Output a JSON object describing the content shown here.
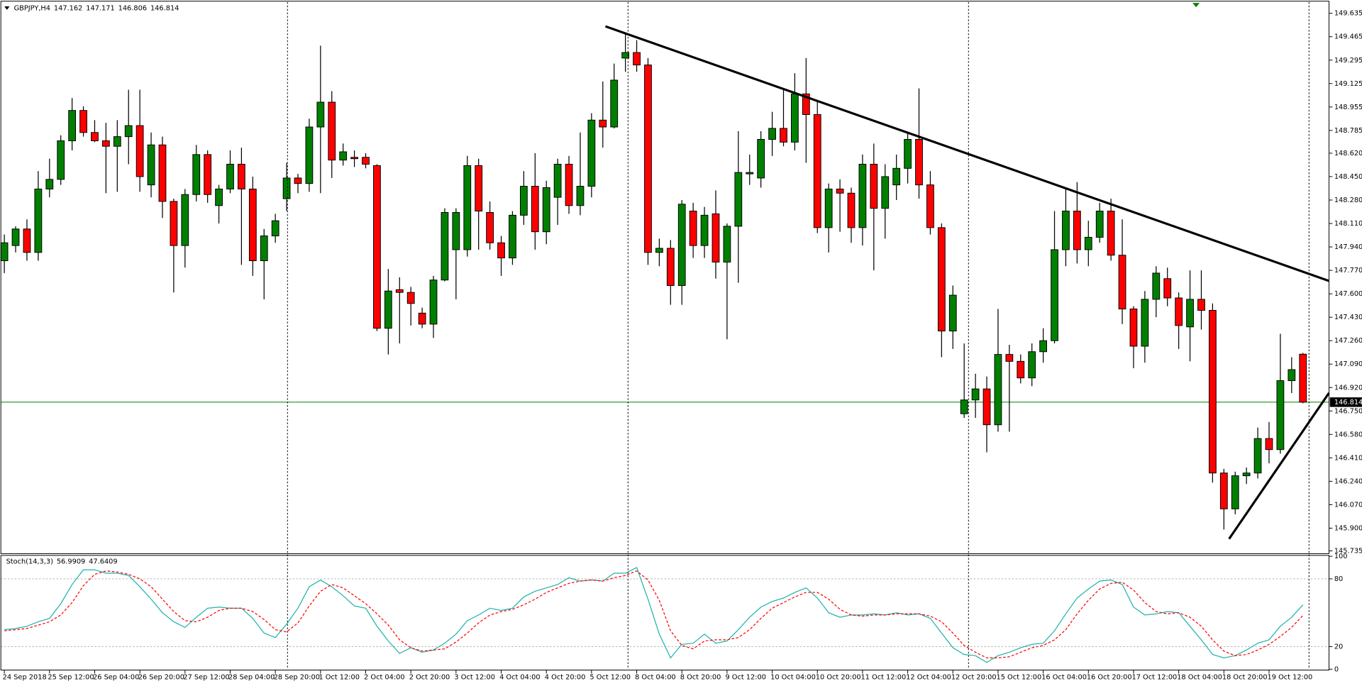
{
  "chart_data": {
    "type": "candlestick",
    "title": "GBPJPY,H4",
    "up_color": "#008000",
    "down_color": "#ff0000",
    "price_line_color": "#008000",
    "ylim": [
      145.715,
      149.71
    ],
    "yticks": [
      149.635,
      149.465,
      149.295,
      149.125,
      148.955,
      148.785,
      {
        "value": 148.62,
        "label": "148.620"
      },
      {
        "value": 148.45,
        "label": "148.450"
      },
      {
        "value": 148.28,
        "label": "148.280"
      },
      {
        "value": 148.11,
        "label": "148.110"
      },
      {
        "value": 147.94,
        "label": "147.940"
      },
      {
        "value": 147.77,
        "label": "147.770"
      },
      {
        "value": 147.6,
        "label": "147.600"
      },
      {
        "value": 147.43,
        "label": "147.430"
      },
      {
        "value": 147.26,
        "label": "147.260"
      },
      {
        "value": 147.09,
        "label": "147.090"
      },
      {
        "value": 146.92,
        "label": "146.920"
      },
      {
        "value": 146.75,
        "label": "146.750"
      },
      {
        "value": 146.58,
        "label": "146.580"
      },
      {
        "value": 146.41,
        "label": "146.410"
      },
      {
        "value": 146.24,
        "label": "146.240"
      },
      {
        "value": 146.07,
        "label": "146.070"
      },
      {
        "value": 145.9,
        "label": "145.900"
      },
      145.735
    ],
    "categories": [
      "24 Sep 2018",
      null,
      null,
      null,
      "25 Sep 12:00",
      null,
      null,
      null,
      "26 Sep 04:00",
      null,
      null,
      null,
      "26 Sep 20:00",
      null,
      null,
      null,
      "27 Sep 12:00",
      null,
      null,
      null,
      "28 Sep 04:00",
      null,
      null,
      null,
      "28 Sep 20:00",
      null,
      null,
      null,
      "1 Oct 12:00",
      null,
      null,
      null,
      "2 Oct 04:00",
      null,
      null,
      null,
      "2 Oct 20:00",
      null,
      null,
      null,
      "3 Oct 12:00",
      null,
      null,
      null,
      "4 Oct 04:00",
      null,
      null,
      null,
      "4 Oct 20:00",
      null,
      null,
      null,
      "5 Oct 12:00",
      null,
      null,
      null,
      "8 Oct 04:00",
      null,
      null,
      null,
      "8 Oct 20:00",
      null,
      null,
      null,
      "9 Oct 12:00",
      null,
      null,
      null,
      "10 Oct 04:00",
      null,
      null,
      null,
      "10 Oct 20:00",
      null,
      null,
      null,
      "11 Oct 12:00",
      null,
      null,
      null,
      "12 Oct 04:00",
      null,
      null,
      null,
      "12 Oct 20:00",
      null,
      null,
      null,
      "15 Oct 12:00",
      null,
      null,
      null,
      "16 Oct 04:00",
      null,
      null,
      null,
      "16 Oct 20:00",
      null,
      null,
      null,
      "17 Oct 12:00",
      null,
      null,
      null,
      "18 Oct 04:00",
      null,
      null,
      null,
      "18 Oct 20:00",
      null,
      null,
      null,
      "19 Oct 12:00",
      null,
      null,
      null
    ],
    "ohlc": [
      [
        147.84,
        148.03,
        147.75,
        147.97
      ],
      [
        147.95,
        148.09,
        147.9,
        148.07
      ],
      [
        148.07,
        148.14,
        147.84,
        147.9
      ],
      [
        147.9,
        148.49,
        147.84,
        148.36
      ],
      [
        148.36,
        148.58,
        148.3,
        148.43
      ],
      [
        148.43,
        148.75,
        148.39,
        148.71
      ],
      [
        148.71,
        149.02,
        148.64,
        148.93
      ],
      [
        148.93,
        148.96,
        148.74,
        148.77
      ],
      [
        148.77,
        148.86,
        148.7,
        148.71
      ],
      [
        148.71,
        148.84,
        148.33,
        148.67
      ],
      [
        148.67,
        148.86,
        148.34,
        148.74
      ],
      [
        148.74,
        149.08,
        148.54,
        148.82
      ],
      [
        148.82,
        149.08,
        148.34,
        148.45
      ],
      [
        148.39,
        148.77,
        148.3,
        148.68
      ],
      [
        148.68,
        148.74,
        148.15,
        148.27
      ],
      [
        148.27,
        148.29,
        147.61,
        147.95
      ],
      [
        147.95,
        148.36,
        147.79,
        148.32
      ],
      [
        148.32,
        148.68,
        148.27,
        148.61
      ],
      [
        148.61,
        148.64,
        148.26,
        148.32
      ],
      [
        148.24,
        148.39,
        148.11,
        148.36
      ],
      [
        148.36,
        148.64,
        148.33,
        148.54
      ],
      [
        148.54,
        148.66,
        147.81,
        148.36
      ],
      [
        148.36,
        148.45,
        147.73,
        147.84
      ],
      [
        147.84,
        148.07,
        147.56,
        148.02
      ],
      [
        148.02,
        148.18,
        147.97,
        148.13
      ],
      [
        148.29,
        148.55,
        148.2,
        148.44
      ],
      [
        148.44,
        148.47,
        148.33,
        148.4
      ],
      [
        148.4,
        148.87,
        148.34,
        148.81
      ],
      [
        148.81,
        149.4,
        148.33,
        148.99
      ],
      [
        148.99,
        149.07,
        148.44,
        148.57
      ],
      [
        148.57,
        148.69,
        148.53,
        148.63
      ],
      [
        148.59,
        148.64,
        148.52,
        148.58
      ],
      [
        148.59,
        148.62,
        148.51,
        148.54
      ],
      [
        148.53,
        148.54,
        147.33,
        147.35
      ],
      [
        147.35,
        147.78,
        147.16,
        147.62
      ],
      [
        147.63,
        147.72,
        147.24,
        147.61
      ],
      [
        147.61,
        147.65,
        147.37,
        147.53
      ],
      [
        147.46,
        147.5,
        147.35,
        147.38
      ],
      [
        147.38,
        147.73,
        147.28,
        147.7
      ],
      [
        147.7,
        148.22,
        147.69,
        148.19
      ],
      [
        147.92,
        148.22,
        147.56,
        148.19
      ],
      [
        147.92,
        148.6,
        147.87,
        148.53
      ],
      [
        148.53,
        148.58,
        147.92,
        148.2
      ],
      [
        148.19,
        148.27,
        147.92,
        147.97
      ],
      [
        147.97,
        148.02,
        147.73,
        147.86
      ],
      [
        147.86,
        148.2,
        147.81,
        148.17
      ],
      [
        148.17,
        148.49,
        148.1,
        148.38
      ],
      [
        148.38,
        148.62,
        147.92,
        148.05
      ],
      [
        148.05,
        148.42,
        147.96,
        148.37
      ],
      [
        148.3,
        148.58,
        148.1,
        148.54
      ],
      [
        148.54,
        148.6,
        148.18,
        148.24
      ],
      [
        148.24,
        148.77,
        148.17,
        148.38
      ],
      [
        148.38,
        148.91,
        148.3,
        148.86
      ],
      [
        148.86,
        149.14,
        148.66,
        148.81
      ],
      [
        148.81,
        149.27,
        148.8,
        149.15
      ],
      [
        149.31,
        149.49,
        149.21,
        149.35
      ],
      [
        149.35,
        149.44,
        149.21,
        149.26
      ],
      [
        149.26,
        149.31,
        147.81,
        147.9
      ],
      [
        147.9,
        148.0,
        147.8,
        147.93
      ],
      [
        147.93,
        147.99,
        147.52,
        147.66
      ],
      [
        147.66,
        148.28,
        147.52,
        148.25
      ],
      [
        148.2,
        148.26,
        147.86,
        147.95
      ],
      [
        147.95,
        148.23,
        147.86,
        148.17
      ],
      [
        148.18,
        148.35,
        147.71,
        147.83
      ],
      [
        147.83,
        148.11,
        147.27,
        148.09
      ],
      [
        148.09,
        148.78,
        147.68,
        148.48
      ],
      [
        148.47,
        148.61,
        148.39,
        148.48
      ],
      [
        148.44,
        148.78,
        148.37,
        148.72
      ],
      [
        148.72,
        148.92,
        148.6,
        148.8
      ],
      [
        148.8,
        149.08,
        148.67,
        148.7
      ],
      [
        148.7,
        149.2,
        148.64,
        149.05
      ],
      [
        149.05,
        149.31,
        148.55,
        148.9
      ],
      [
        148.9,
        149.0,
        148.04,
        148.08
      ],
      [
        148.08,
        148.4,
        147.9,
        148.36
      ],
      [
        148.36,
        148.43,
        148.05,
        148.33
      ],
      [
        148.33,
        148.37,
        147.97,
        148.08
      ],
      [
        148.08,
        148.61,
        147.95,
        148.54
      ],
      [
        148.54,
        148.69,
        147.77,
        148.22
      ],
      [
        148.22,
        148.54,
        148.0,
        148.45
      ],
      [
        148.39,
        148.61,
        148.28,
        148.51
      ],
      [
        148.51,
        148.77,
        148.4,
        148.72
      ],
      [
        148.72,
        149.09,
        148.29,
        148.39
      ],
      [
        148.39,
        148.49,
        148.03,
        148.08
      ],
      [
        148.08,
        148.11,
        147.14,
        147.33
      ],
      [
        147.33,
        147.66,
        147.2,
        147.59
      ],
      [
        146.73,
        147.24,
        146.7,
        146.83
      ],
      [
        146.83,
        147.02,
        146.7,
        146.91
      ],
      [
        146.91,
        147.0,
        146.45,
        146.65
      ],
      [
        146.65,
        147.49,
        146.6,
        147.16
      ],
      [
        147.16,
        147.23,
        146.6,
        147.11
      ],
      [
        147.11,
        147.16,
        146.95,
        146.99
      ],
      [
        146.99,
        147.24,
        146.93,
        147.18
      ],
      [
        147.18,
        147.35,
        147.1,
        147.26
      ],
      [
        147.26,
        148.2,
        147.24,
        147.92
      ],
      [
        147.92,
        148.36,
        147.8,
        148.2
      ],
      [
        148.2,
        148.41,
        147.82,
        147.92
      ],
      [
        147.92,
        148.13,
        147.8,
        148.01
      ],
      [
        148.01,
        148.26,
        147.97,
        148.2
      ],
      [
        148.2,
        148.29,
        147.84,
        147.88
      ],
      [
        147.88,
        148.14,
        147.38,
        147.49
      ],
      [
        147.49,
        147.51,
        147.06,
        147.22
      ],
      [
        147.22,
        147.62,
        147.1,
        147.56
      ],
      [
        147.56,
        147.8,
        147.43,
        147.75
      ],
      [
        147.71,
        147.79,
        147.51,
        147.57
      ],
      [
        147.57,
        147.61,
        147.2,
        147.37
      ],
      [
        147.36,
        147.77,
        147.11,
        147.56
      ],
      [
        147.56,
        147.77,
        147.34,
        147.48
      ],
      [
        147.48,
        147.53,
        146.23,
        146.3
      ],
      [
        146.3,
        146.33,
        145.89,
        146.04
      ],
      [
        146.04,
        146.31,
        146.0,
        146.28
      ],
      [
        146.28,
        146.34,
        146.22,
        146.3
      ],
      [
        146.3,
        146.63,
        146.26,
        146.55
      ],
      [
        146.55,
        146.67,
        146.37,
        146.47
      ],
      [
        146.47,
        147.31,
        146.44,
        146.97
      ],
      [
        146.97,
        147.14,
        146.88,
        147.05
      ],
      [
        147.162,
        147.171,
        146.806,
        146.814
      ]
    ],
    "stochastic": {
      "title": "Stoch(14,3,3)",
      "main_color": "#20b2aa",
      "signal_color": "#ff0000",
      "ylim": [
        0,
        100
      ],
      "yticks": [
        100,
        80,
        20,
        0
      ],
      "main": [
        35,
        36,
        38,
        42,
        45,
        58,
        75,
        88,
        88,
        85,
        85,
        83,
        73,
        62,
        50,
        42,
        37,
        46,
        54,
        55,
        54,
        54,
        45,
        32,
        28,
        40,
        54,
        73,
        79,
        73,
        65,
        56,
        54,
        38,
        25,
        14,
        19,
        15,
        17,
        23,
        31,
        43,
        48,
        54,
        52,
        54,
        64,
        69,
        72,
        75,
        81,
        78,
        79,
        78,
        85,
        85,
        90,
        62,
        31,
        10,
        22,
        23,
        31,
        23,
        25,
        35,
        46,
        55,
        60,
        63,
        68,
        72,
        63,
        50,
        46,
        48,
        48,
        49,
        48,
        50,
        48,
        49,
        45,
        32,
        19,
        13,
        12,
        6,
        12,
        15,
        19,
        22,
        23,
        34,
        49,
        63,
        71,
        78,
        79,
        75,
        55,
        48,
        49,
        51,
        50,
        38,
        26,
        13,
        10,
        12,
        17,
        23,
        26,
        38,
        46,
        56.9909
      ],
      "signal": [
        34,
        35,
        36,
        39,
        42,
        48,
        59,
        74,
        84,
        87,
        86,
        84,
        80,
        73,
        62,
        51,
        43,
        42,
        46,
        52,
        54,
        54,
        51,
        44,
        35,
        33,
        41,
        56,
        69,
        75,
        72,
        65,
        58,
        49,
        39,
        26,
        19,
        16,
        17,
        18,
        24,
        32,
        41,
        48,
        51,
        53,
        57,
        62,
        68,
        72,
        76,
        78,
        79,
        78,
        81,
        83,
        87,
        79,
        61,
        34,
        21,
        18,
        25,
        26,
        26,
        28,
        35,
        45,
        54,
        59,
        64,
        68,
        68,
        62,
        53,
        48,
        47,
        48,
        48,
        49,
        49,
        49,
        47,
        42,
        32,
        21,
        15,
        10,
        10,
        11,
        15,
        19,
        21,
        26,
        35,
        49,
        61,
        71,
        76,
        77,
        70,
        59,
        51,
        49,
        50,
        46,
        38,
        26,
        16,
        12,
        13,
        17,
        22,
        29,
        37,
        47.6409
      ]
    }
  }
}
